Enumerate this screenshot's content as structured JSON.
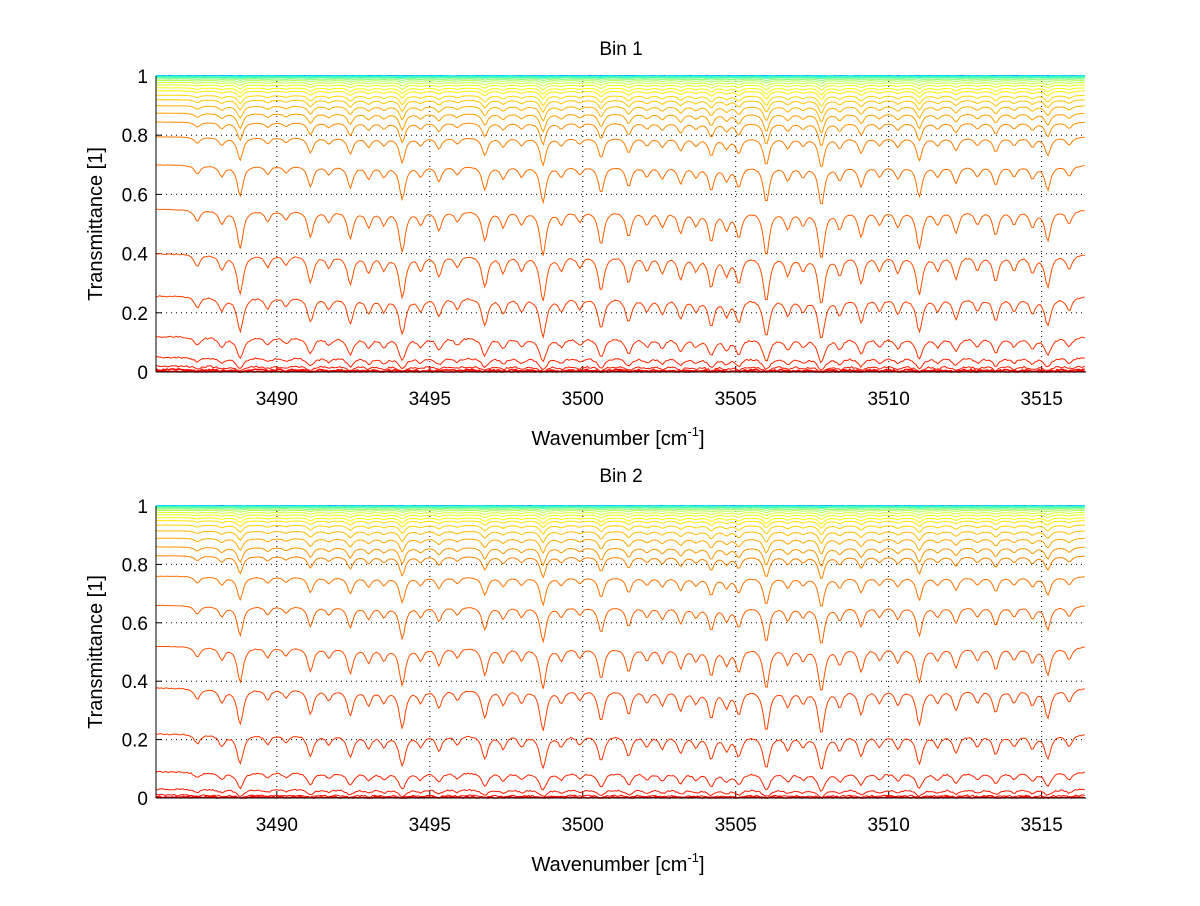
{
  "chart_data": [
    {
      "type": "line",
      "title": "Bin 1",
      "xlabel": "Wavenumber [cm",
      "xlabel_sup": "-1",
      "xlabel_end": "]",
      "ylabel": "Transmittance [1]",
      "xlim": [
        3486.05,
        3516.45
      ],
      "ylim": [
        0,
        1
      ],
      "xticks": [
        3490,
        3495,
        3500,
        3505,
        3510,
        3515
      ],
      "yticks": [
        0,
        0.2,
        0.4,
        0.6,
        0.8,
        1
      ],
      "ytick_labels": [
        "0",
        "0.2",
        "0.4",
        "0.6",
        "0.8",
        "1"
      ],
      "grid": true,
      "series_continuum": [
        1.0,
        1.0,
        0.999,
        0.997,
        0.994,
        0.99,
        0.985,
        0.978,
        0.97,
        0.96,
        0.95,
        0.935,
        0.92,
        0.9,
        0.875,
        0.845,
        0.795,
        0.7,
        0.55,
        0.4,
        0.257,
        0.12,
        0.05,
        0.02,
        0.008,
        0.002
      ],
      "noise": 0.006
    },
    {
      "type": "line",
      "title": "Bin 2",
      "xlabel": "Wavenumber [cm",
      "xlabel_sup": "-1",
      "xlabel_end": "]",
      "ylabel": "Transmittance [1]",
      "xlim": [
        3486.05,
        3516.45
      ],
      "ylim": [
        0,
        1
      ],
      "xticks": [
        3490,
        3495,
        3500,
        3505,
        3510,
        3515
      ],
      "yticks": [
        0,
        0.2,
        0.4,
        0.6,
        0.8,
        1
      ],
      "ytick_labels": [
        "0",
        "0.2",
        "0.4",
        "0.6",
        "0.8",
        "1"
      ],
      "grid": true,
      "series_continuum": [
        1.0,
        1.0,
        0.999,
        0.997,
        0.994,
        0.99,
        0.985,
        0.978,
        0.97,
        0.96,
        0.95,
        0.935,
        0.915,
        0.89,
        0.86,
        0.83,
        0.76,
        0.66,
        0.52,
        0.377,
        0.22,
        0.09,
        0.03,
        0.01,
        0.003
      ],
      "noise": 0.005
    }
  ],
  "absorption_lines": [
    [
      3487.4,
      0.12
    ],
    [
      3488.2,
      0.15
    ],
    [
      3488.8,
      0.45
    ],
    [
      3489.7,
      0.12
    ],
    [
      3490.3,
      0.1
    ],
    [
      3491.1,
      0.3
    ],
    [
      3491.7,
      0.12
    ],
    [
      3492.4,
      0.32
    ],
    [
      3493.0,
      0.18
    ],
    [
      3493.5,
      0.15
    ],
    [
      3494.1,
      0.5
    ],
    [
      3494.7,
      0.15
    ],
    [
      3495.3,
      0.22
    ],
    [
      3495.9,
      0.12
    ],
    [
      3496.8,
      0.35
    ],
    [
      3497.4,
      0.18
    ],
    [
      3498.0,
      0.15
    ],
    [
      3498.7,
      0.55
    ],
    [
      3499.3,
      0.15
    ],
    [
      3499.9,
      0.12
    ],
    [
      3500.6,
      0.4
    ],
    [
      3501.5,
      0.3
    ],
    [
      3502.1,
      0.15
    ],
    [
      3502.6,
      0.18
    ],
    [
      3503.2,
      0.25
    ],
    [
      3503.7,
      0.15
    ],
    [
      3504.2,
      0.35
    ],
    [
      3504.7,
      0.2
    ],
    [
      3505.1,
      0.3
    ],
    [
      3506.0,
      0.55
    ],
    [
      3506.7,
      0.2
    ],
    [
      3507.2,
      0.15
    ],
    [
      3507.8,
      0.6
    ],
    [
      3508.4,
      0.2
    ],
    [
      3509.1,
      0.3
    ],
    [
      3509.7,
      0.15
    ],
    [
      3510.3,
      0.18
    ],
    [
      3511.0,
      0.45
    ],
    [
      3511.6,
      0.15
    ],
    [
      3512.2,
      0.25
    ],
    [
      3512.9,
      0.15
    ],
    [
      3513.5,
      0.28
    ],
    [
      3514.1,
      0.15
    ],
    [
      3514.7,
      0.18
    ],
    [
      3515.2,
      0.35
    ],
    [
      3515.9,
      0.15
    ]
  ]
}
